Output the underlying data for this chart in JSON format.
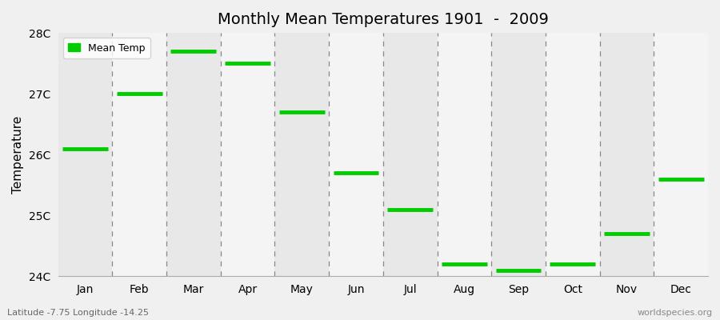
{
  "title": "Monthly Mean Temperatures 1901  -  2009",
  "ylabel": "Temperature",
  "subtitle_left": "Latitude -7.75 Longitude -14.25",
  "subtitle_right": "worldspecies.org",
  "months": [
    "Jan",
    "Feb",
    "Mar",
    "Apr",
    "May",
    "Jun",
    "Jul",
    "Aug",
    "Sep",
    "Oct",
    "Nov",
    "Dec"
  ],
  "temps": [
    26.1,
    27.0,
    27.7,
    27.5,
    26.7,
    25.7,
    25.1,
    24.2,
    24.1,
    24.2,
    24.7,
    25.6
  ],
  "ylim": [
    24.0,
    28.0
  ],
  "yticks": [
    24,
    25,
    26,
    27,
    28
  ],
  "ytick_labels": [
    "24C",
    "25C",
    "26C",
    "27C",
    "28C"
  ],
  "line_color": "#00CC00",
  "line_width": 3.5,
  "bg_color": "#F0F0F0",
  "plot_bg": "#F0F0F0",
  "band_light": "#F4F4F4",
  "band_dark": "#E8E8E8",
  "grid_color": "#888888",
  "legend_label": "Mean Temp",
  "legend_color": "#00CC00",
  "n_months": 12
}
